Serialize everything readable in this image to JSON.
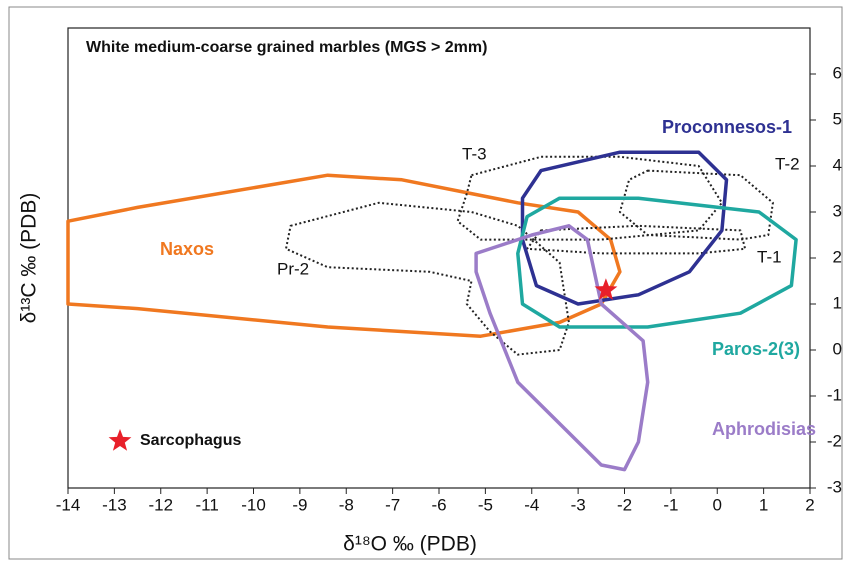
{
  "chart_data": {
    "type": "line",
    "title": "White medium-coarse grained marbles (MGS > 2mm)",
    "xlabel": "δ¹⁸O ‰ (PDB)",
    "ylabel": "δ¹³C ‰ (PDB)",
    "xlim": [
      -14,
      2
    ],
    "ylim": [
      -3,
      7
    ],
    "xticks": [
      -14,
      -13,
      -12,
      -11,
      -10,
      -9,
      -8,
      -7,
      -6,
      -5,
      -4,
      -3,
      -2,
      -1,
      0,
      1,
      2
    ],
    "yticks": [
      -3,
      -2,
      -1,
      0,
      1,
      2,
      3,
      4,
      5,
      6
    ],
    "series": [
      {
        "name": "Naxos",
        "color": "#f07820",
        "style": "solid",
        "x": [
          -14,
          -12.5,
          -8.4,
          -6.8,
          -5.3,
          -4.3,
          -3.0,
          -2.3,
          -2.1,
          -2.5,
          -3.4,
          -5.1,
          -8.4,
          -12.5,
          -14
        ],
        "y": [
          2.8,
          3.1,
          3.8,
          3.7,
          3.4,
          3.2,
          3.0,
          2.4,
          1.7,
          1.0,
          0.6,
          0.3,
          0.5,
          0.9,
          1.0
        ]
      },
      {
        "name": "Pr-2",
        "color": "#222222",
        "style": "dotted",
        "x": [
          -9.2,
          -7.3,
          -5.3,
          -4.3,
          -3.4,
          -3.2,
          -3.4,
          -4.3,
          -4.9,
          -5.4,
          -5.3,
          -6.2,
          -8.4,
          -9.3
        ],
        "y": [
          2.7,
          3.2,
          3.0,
          2.7,
          1.9,
          0.6,
          0.0,
          -0.1,
          0.4,
          1.0,
          1.5,
          1.7,
          1.8,
          2.2
        ]
      },
      {
        "name": "T-3",
        "color": "#222222",
        "style": "dotted",
        "x": [
          -5.3,
          -3.8,
          -2.1,
          -0.4,
          0.1,
          -0.4,
          -2.5,
          -5.1,
          -5.6,
          -5.4
        ],
        "y": [
          3.8,
          4.2,
          4.2,
          4.0,
          3.2,
          2.6,
          2.4,
          2.4,
          2.8,
          3.4
        ]
      },
      {
        "name": "T-2",
        "color": "#222222",
        "style": "dotted",
        "x": [
          -1.5,
          0.5,
          1.2,
          1.1,
          0.5,
          -1.5,
          -2.1,
          -1.9
        ],
        "y": [
          3.9,
          3.8,
          3.2,
          2.5,
          2.4,
          2.5,
          3.0,
          3.7
        ]
      },
      {
        "name": "T-1",
        "color": "#222222",
        "style": "dotted",
        "x": [
          -3.8,
          -1.7,
          0.5,
          0.6,
          -0.4,
          -2.5,
          -4.1
        ],
        "y": [
          2.6,
          2.7,
          2.6,
          2.2,
          2.1,
          2.1,
          2.2
        ]
      },
      {
        "name": "Proconnesos-1",
        "color": "#2e3192",
        "style": "solid",
        "x": [
          -3.8,
          -2.1,
          -0.4,
          0.2,
          0.1,
          -0.6,
          -1.7,
          -3.0,
          -3.9,
          -4.2,
          -4.2
        ],
        "y": [
          3.9,
          4.3,
          4.3,
          3.7,
          2.6,
          1.7,
          1.2,
          1.0,
          1.4,
          2.4,
          3.3
        ]
      },
      {
        "name": "Paros-2(3)",
        "color": "#1fa8a0",
        "style": "solid",
        "x": [
          -3.4,
          -1.7,
          0.9,
          1.7,
          1.6,
          0.5,
          -1.5,
          -3.4,
          -4.2,
          -4.3,
          -4.1
        ],
        "y": [
          3.3,
          3.3,
          3.0,
          2.4,
          1.4,
          0.8,
          0.5,
          0.5,
          1.0,
          2.1,
          2.9
        ]
      },
      {
        "name": "Aphrodisias",
        "color": "#9b7cc8",
        "style": "solid",
        "x": [
          -5.2,
          -4.0,
          -3.2,
          -2.8,
          -2.5,
          -1.6,
          -1.5,
          -1.7,
          -2.0,
          -2.5,
          -3.4,
          -4.3,
          -4.9,
          -5.2
        ],
        "y": [
          2.1,
          2.5,
          2.7,
          2.4,
          1.0,
          0.2,
          -0.7,
          -2.0,
          -2.6,
          -2.5,
          -1.6,
          -0.7,
          0.8,
          1.7
        ]
      },
      {
        "name": "Sarcophagus",
        "color": "#e8202a",
        "style": "star",
        "x": [
          -2.4
        ],
        "y": [
          1.3
        ]
      }
    ]
  }
}
